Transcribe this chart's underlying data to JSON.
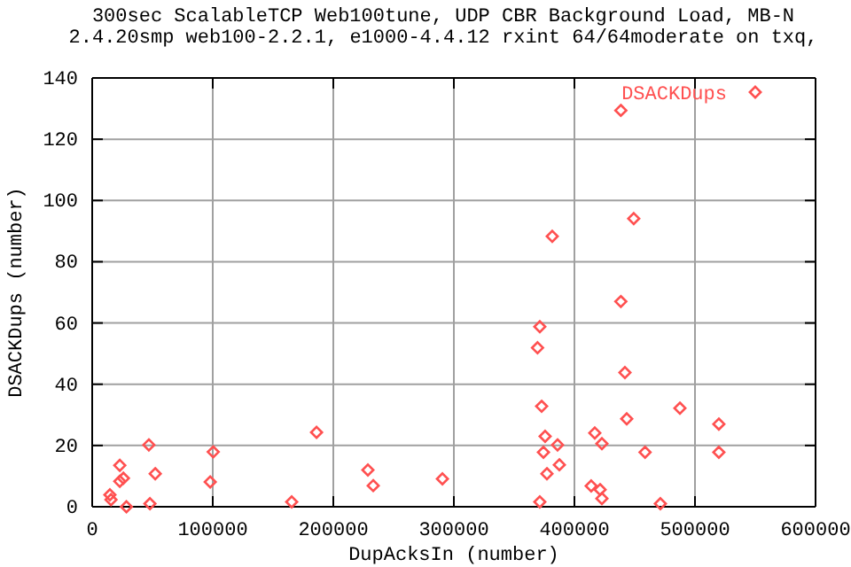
{
  "chart_data": {
    "type": "scatter",
    "title": "300sec ScalableTCP Web100tune, UDP CBR Background Load, MB-N",
    "subtitle": "2.4.20smp web100-2.2.1, e1000-4.4.12 rxint 64/64moderate on txq,",
    "xlabel": "DupAcksIn (number)",
    "ylabel": "DSACKDups (number)",
    "xlim": [
      0,
      600000
    ],
    "xticks": [
      0,
      100000,
      200000,
      300000,
      400000,
      500000,
      600000
    ],
    "ylim": [
      0,
      140
    ],
    "yticks": [
      0,
      20,
      40,
      60,
      80,
      100,
      120,
      140
    ],
    "grid": true,
    "legend": "top right",
    "marker": "diamond",
    "series": [
      {
        "name": "DSACKDups",
        "color": "#ff5050",
        "x": [
          14700,
          15600,
          22900,
          22900,
          25900,
          28400,
          47000,
          52300,
          47900,
          100400,
          97900,
          165500,
          186100,
          228700,
          233100,
          290500,
          438500,
          449200,
          381600,
          438500,
          371300,
          369400,
          441900,
          372800,
          487500,
          443400,
          519800,
          416900,
          375700,
          386000,
          422800,
          374300,
          458600,
          519800,
          387500,
          377200,
          413900,
          421300,
          422800,
          371300,
          471300
        ],
        "values": [
          3.9,
          2.3,
          13.5,
          8.3,
          9.3,
          0,
          20.2,
          10.8,
          1,
          17.9,
          8.1,
          1.6,
          24.3,
          12,
          6.9,
          9.1,
          129.4,
          94.1,
          88.3,
          67,
          58.8,
          51.9,
          43.8,
          32.8,
          32.2,
          28.7,
          27,
          24.1,
          23,
          20.2,
          20.6,
          17.8,
          17.8,
          17.8,
          13.7,
          10.8,
          6.8,
          5.6,
          2.7,
          1.6,
          1
        ]
      }
    ]
  }
}
